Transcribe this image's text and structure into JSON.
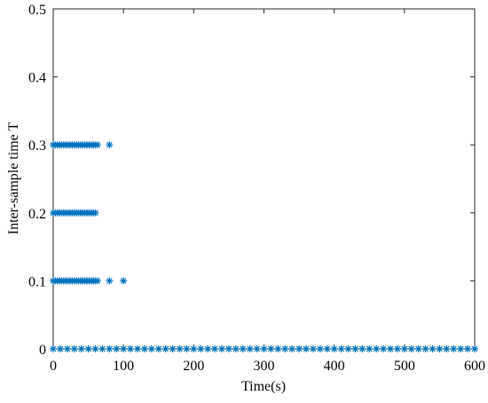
{
  "chart_data": {
    "type": "scatter",
    "xlabel": "Time(s)",
    "ylabel": "Inter-sample time T",
    "color": "#0072bd",
    "marker": "asterisk",
    "xlim": [
      0,
      600
    ],
    "xticks": [
      0,
      100,
      200,
      300,
      400,
      500,
      600
    ],
    "ylim": [
      0,
      0.5
    ],
    "yticks": [
      0,
      0.1,
      0.2,
      0.3,
      0.4,
      0.5
    ],
    "x": [
      0,
      10,
      20,
      30,
      40,
      50,
      60,
      70,
      80,
      90,
      100,
      110,
      120,
      130,
      140,
      150,
      160,
      170,
      180,
      190,
      200,
      210,
      220,
      230,
      240,
      250,
      260,
      270,
      280,
      290,
      300,
      310,
      320,
      330,
      340,
      350,
      360,
      370,
      380,
      390,
      400,
      410,
      420,
      430,
      440,
      450,
      460,
      470,
      480,
      490,
      500,
      510,
      520,
      530,
      540,
      550,
      560,
      570,
      580,
      590,
      600,
      0,
      3,
      6,
      9,
      12,
      15,
      18,
      21,
      24,
      27,
      30,
      33,
      36,
      39,
      42,
      45,
      48,
      51,
      54,
      57,
      60,
      63,
      80,
      100,
      0,
      3,
      6,
      9,
      12,
      15,
      18,
      21,
      24,
      27,
      30,
      33,
      36,
      39,
      42,
      45,
      48,
      51,
      54,
      57,
      60,
      0,
      3,
      6,
      9,
      12,
      15,
      18,
      21,
      24,
      27,
      30,
      33,
      36,
      39,
      42,
      45,
      48,
      51,
      54,
      57,
      60,
      63,
      80
    ],
    "values": [
      0,
      0,
      0,
      0,
      0,
      0,
      0,
      0,
      0,
      0,
      0,
      0,
      0,
      0,
      0,
      0,
      0,
      0,
      0,
      0,
      0,
      0,
      0,
      0,
      0,
      0,
      0,
      0,
      0,
      0,
      0,
      0,
      0,
      0,
      0,
      0,
      0,
      0,
      0,
      0,
      0,
      0,
      0,
      0,
      0,
      0,
      0,
      0,
      0,
      0,
      0,
      0,
      0,
      0,
      0,
      0,
      0,
      0,
      0,
      0,
      0,
      0.1,
      0.1,
      0.1,
      0.1,
      0.1,
      0.1,
      0.1,
      0.1,
      0.1,
      0.1,
      0.1,
      0.1,
      0.1,
      0.1,
      0.1,
      0.1,
      0.1,
      0.1,
      0.1,
      0.1,
      0.1,
      0.1,
      0.1,
      0.1,
      0.2,
      0.2,
      0.2,
      0.2,
      0.2,
      0.2,
      0.2,
      0.2,
      0.2,
      0.2,
      0.2,
      0.2,
      0.2,
      0.2,
      0.2,
      0.2,
      0.2,
      0.2,
      0.2,
      0.2,
      0.2,
      0.3,
      0.3,
      0.3,
      0.3,
      0.3,
      0.3,
      0.3,
      0.3,
      0.3,
      0.3,
      0.3,
      0.3,
      0.3,
      0.3,
      0.3,
      0.3,
      0.3,
      0.3,
      0.3,
      0.3,
      0.3,
      0.3,
      0.3
    ]
  }
}
